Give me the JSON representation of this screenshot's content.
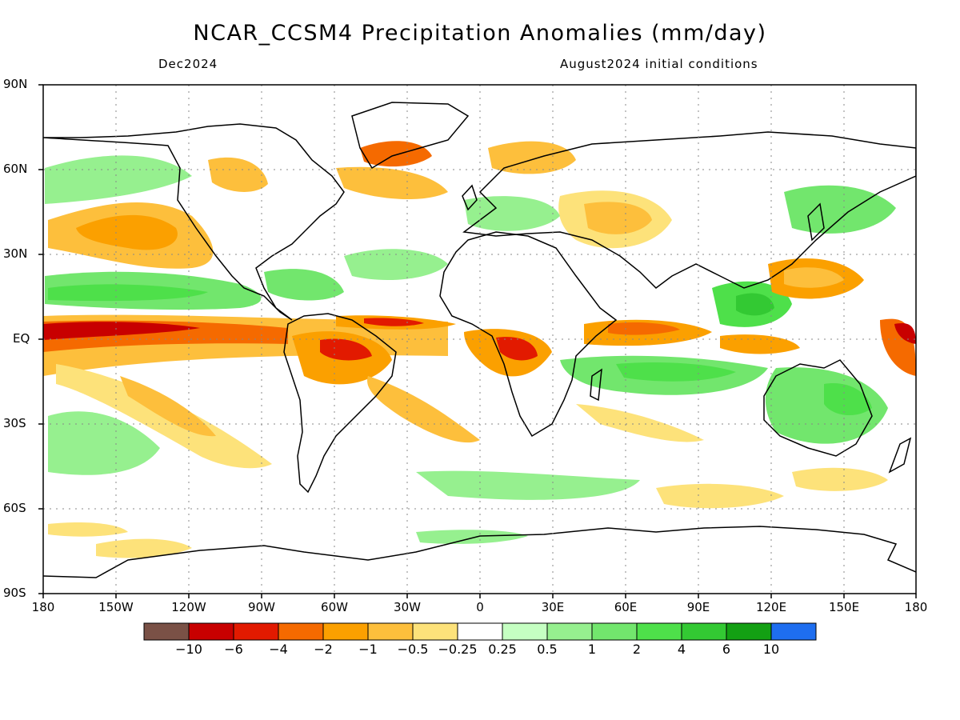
{
  "title": "NCAR_CCSM4 Precipitation Anomalies (mm/day)",
  "month_label": "Dec2024",
  "init_label": "August2024 initial conditions",
  "lat_labels": [
    "90N",
    "60N",
    "30N",
    "EQ",
    "30S",
    "60S",
    "90S"
  ],
  "lon_labels": [
    "180",
    "150W",
    "120W",
    "90W",
    "60W",
    "30W",
    "0",
    "30E",
    "60E",
    "90E",
    "120E",
    "150E",
    "180"
  ],
  "colorbar": {
    "labels": [
      "−10",
      "−6",
      "−4",
      "−2",
      "−1",
      "−0.5",
      "−0.25",
      "0.25",
      "0.5",
      "1",
      "2",
      "4",
      "6",
      "10"
    ],
    "colors": [
      "#7a5146",
      "#c80000",
      "#e21a00",
      "#f56a00",
      "#fba000",
      "#fdbf3c",
      "#fde27a",
      "#ffffff",
      "#c5ffc2",
      "#96f08f",
      "#72e66d",
      "#4ee04a",
      "#33c933",
      "#13a013",
      "#1e6ef0"
    ]
  },
  "anomaly_colors": {
    "dry_extreme": "#c80000",
    "dry_strong": "#e21a00",
    "dry_moderate": "#f56a00",
    "dry_light": "#fba000",
    "dry_weak": "#fdbf3c",
    "dry_slight": "#fde27a",
    "wet_slight": "#c5ffc2",
    "wet_weak": "#96f08f",
    "wet_light": "#72e66d",
    "wet_moderate": "#4ee04a",
    "wet_strong": "#33c933"
  }
}
